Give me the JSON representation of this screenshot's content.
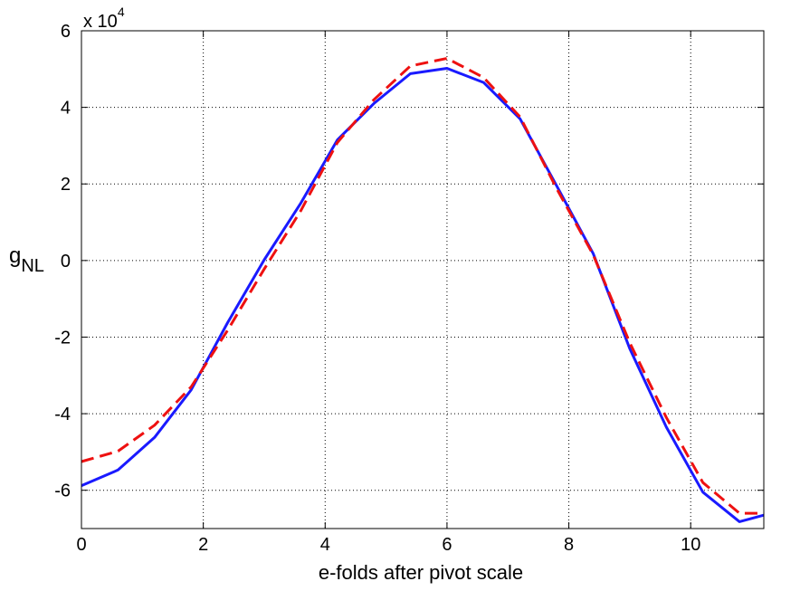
{
  "chart_data": {
    "type": "line",
    "xlabel": "e-folds after pivot scale",
    "ylabel": {
      "main": "g",
      "subscript": "NL"
    },
    "y_multiplier": {
      "base": "x 10",
      "exponent": "4"
    },
    "xlim": [
      0,
      11.2
    ],
    "ylim": [
      -7,
      6
    ],
    "xticks": [
      0,
      2,
      4,
      6,
      8,
      10
    ],
    "yticks": [
      -6,
      -4,
      -2,
      0,
      2,
      4,
      6
    ],
    "grid": true,
    "series": [
      {
        "color": "#1a1aff",
        "style": "solid",
        "x": [
          0,
          0.6,
          1.2,
          1.8,
          2.4,
          3.0,
          3.6,
          4.2,
          4.8,
          5.4,
          6.0,
          6.6,
          7.2,
          7.8,
          8.4,
          9.0,
          9.6,
          10.2,
          10.8,
          11.2
        ],
        "values": [
          -5.88,
          -5.47,
          -4.62,
          -3.38,
          -1.62,
          0.02,
          1.5,
          3.15,
          4.1,
          4.88,
          5.02,
          4.65,
          3.7,
          1.95,
          0.18,
          -2.3,
          -4.35,
          -6.05,
          -6.82,
          -6.65
        ]
      },
      {
        "color": "#ee1111",
        "style": "dashed",
        "x": [
          0,
          0.6,
          1.2,
          1.8,
          2.4,
          3.0,
          3.6,
          4.2,
          4.8,
          5.4,
          6.0,
          6.6,
          7.2,
          7.8,
          8.4,
          9.0,
          9.6,
          10.2,
          10.8,
          11.2
        ],
        "values": [
          -5.25,
          -4.98,
          -4.3,
          -3.3,
          -1.82,
          -0.22,
          1.3,
          3.08,
          4.2,
          5.08,
          5.28,
          4.78,
          3.75,
          1.88,
          0.15,
          -2.15,
          -4.1,
          -5.8,
          -6.6,
          -6.6
        ]
      }
    ]
  }
}
